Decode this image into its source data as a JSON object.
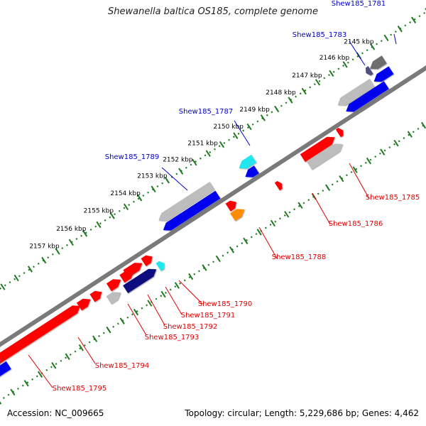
{
  "title": "Shewanella baltica OS185, complete genome",
  "accession": "Accession: NC_009665",
  "topology": "Topology: circular; Length: 5,229,686 bp; Genes: 4,462",
  "colors": {
    "forward": "#ff0000",
    "reverse": "#0000ee",
    "gray": "#bdbdbd",
    "cyan": "#22e6ee",
    "orange": "#ff8c00",
    "navy": "#0c0c80",
    "purple": "#505080",
    "darkgray": "#6e6e6e",
    "backbone": "#7a7a7a",
    "tick": "#1e7a1e",
    "label_forward": "#e00000",
    "label_reverse": "#0000cc"
  },
  "ticks": [
    {
      "label": "2145 kbp"
    },
    {
      "label": "2146 kbp"
    },
    {
      "label": "2147 kbp"
    },
    {
      "label": "2148 kbp"
    },
    {
      "label": "2149 kbp"
    },
    {
      "label": "2150 kbp"
    },
    {
      "label": "2151 kbp"
    },
    {
      "label": "2152 kbp"
    },
    {
      "label": "2153 kbp"
    },
    {
      "label": "2154 kbp"
    },
    {
      "label": "2155 kbp"
    },
    {
      "label": "2156 kbp"
    },
    {
      "label": "2157 kbp"
    }
  ],
  "genes": [
    {
      "name": "Shew185_1781",
      "strand": "reverse"
    },
    {
      "name": "Shew185_1783",
      "strand": "reverse"
    },
    {
      "name": "Shew185_1787",
      "strand": "reverse"
    },
    {
      "name": "Shew185_1789",
      "strand": "reverse"
    },
    {
      "name": "Shew185_1785",
      "strand": "forward"
    },
    {
      "name": "Shew185_1786",
      "strand": "forward"
    },
    {
      "name": "Shew185_1788",
      "strand": "forward"
    },
    {
      "name": "Shew185_1790",
      "strand": "forward"
    },
    {
      "name": "Shew185_1791",
      "strand": "forward"
    },
    {
      "name": "Shew185_1792",
      "strand": "forward"
    },
    {
      "name": "Shew185_1793",
      "strand": "forward"
    },
    {
      "name": "Shew185_1794",
      "strand": "forward"
    },
    {
      "name": "Shew185_1795",
      "strand": "forward"
    }
  ]
}
